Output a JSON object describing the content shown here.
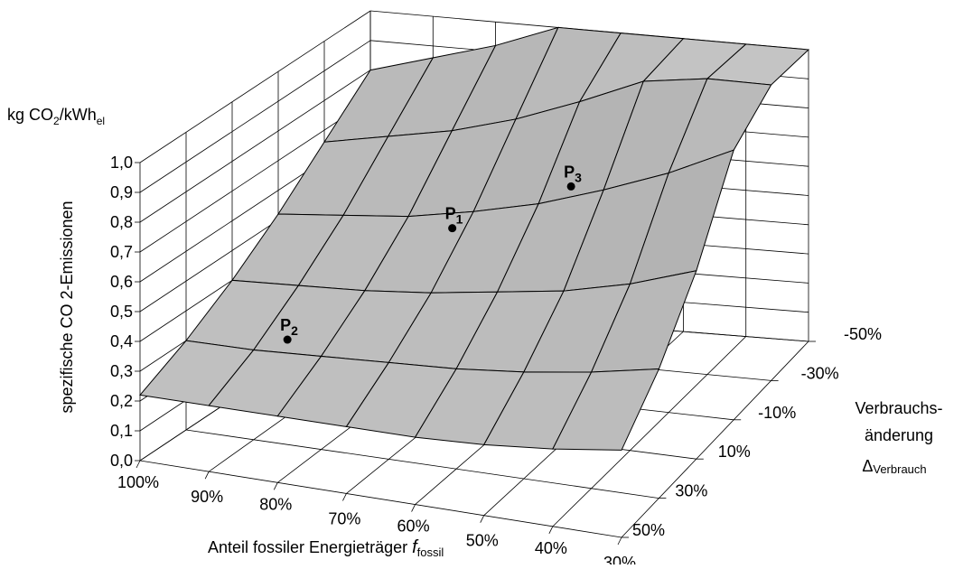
{
  "chart_data": {
    "type": "surface3d",
    "z_unit": [
      "kg CO",
      "2",
      "/kWh",
      "el"
    ],
    "z_title": "spezifische CO 2-Emissionen",
    "x_title": [
      "Anteil fossiler Energieträger ",
      "f",
      "fossil"
    ],
    "y_title": [
      "Verbrauchs-",
      "änderung",
      "Δ",
      "Verbrauch"
    ],
    "x_categories": [
      "100%",
      "90%",
      "80%",
      "70%",
      "60%",
      "50%",
      "40%",
      "30%"
    ],
    "y_categories": [
      "50%",
      "30%",
      "10%",
      "-10%",
      "-30%",
      "-50%"
    ],
    "z": [
      [
        0.22,
        0.22,
        0.22,
        0.22,
        0.22,
        0.23,
        0.25,
        0.28
      ],
      [
        0.3,
        0.3,
        0.31,
        0.32,
        0.33,
        0.35,
        0.38,
        0.42
      ],
      [
        0.4,
        0.41,
        0.42,
        0.44,
        0.47,
        0.5,
        0.55,
        0.62
      ],
      [
        0.52,
        0.54,
        0.56,
        0.6,
        0.65,
        0.72,
        0.8,
        0.9
      ],
      [
        0.66,
        0.7,
        0.74,
        0.8,
        0.88,
        0.97,
        1.0,
        1.0
      ],
      [
        0.8,
        0.86,
        0.92,
        1.0,
        1.0,
        1.0,
        1.0,
        1.0
      ]
    ],
    "zlim": [
      0,
      1
    ],
    "zticks": [
      {
        "value": 0,
        "label": "0,0"
      },
      {
        "value": 0.1,
        "label": "0,1"
      },
      {
        "value": 0.2,
        "label": "0,2"
      },
      {
        "value": 0.3,
        "label": "0,3"
      },
      {
        "value": 0.4,
        "label": "0,4"
      },
      {
        "value": 0.5,
        "label": "0,5"
      },
      {
        "value": 0.6,
        "label": "0,6"
      },
      {
        "value": 0.7,
        "label": "0,7"
      },
      {
        "value": 0.8,
        "label": "0,8"
      },
      {
        "value": 0.9,
        "label": "0,9"
      },
      {
        "value": 1,
        "label": "1,0"
      }
    ],
    "color": "#c4c4c4",
    "points": [
      {
        "label": "P",
        "sub": "1",
        "fossil": 70,
        "change": 0,
        "z": 0.6
      },
      {
        "label": "P",
        "sub": "2",
        "fossil": 85,
        "change": 30,
        "z": 0.35
      },
      {
        "label": "P",
        "sub": "3",
        "fossil": 55,
        "change": -10,
        "z": 0.72
      }
    ]
  }
}
